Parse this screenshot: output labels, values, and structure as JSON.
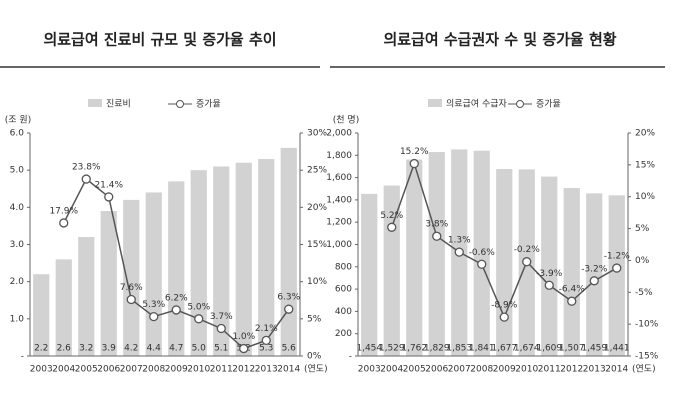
{
  "chart_data": [
    {
      "type": "combo",
      "title": "의료급여 진료비 규모 및 증가율 추이",
      "y_label": "(조 원)",
      "x_label": "(연도)",
      "categories": [
        "2003",
        "2004",
        "2005",
        "2006",
        "2007",
        "2008",
        "2009",
        "2010",
        "2011",
        "2012",
        "2013",
        "2014"
      ],
      "series": [
        {
          "name": "진료비",
          "color": "#d2d2d2",
          "values": [
            2.2,
            2.6,
            3.2,
            3.9,
            4.2,
            4.4,
            4.7,
            5.0,
            5.1,
            5.2,
            5.3,
            5.6
          ],
          "value_labels": [
            "2.2",
            "2.6",
            "3.2",
            "3.9",
            "4.2",
            "4.4",
            "4.7",
            "5.0",
            "5.1",
            "5.2",
            "5.3",
            "5.6"
          ]
        },
        {
          "name": "증가율",
          "color": "#555555",
          "axis": "y2",
          "values": [
            null,
            17.9,
            23.8,
            21.4,
            7.6,
            5.3,
            6.2,
            5.0,
            3.7,
            1.0,
            2.1,
            6.3
          ],
          "value_labels": [
            null,
            "17.9%",
            "23.8%",
            "21.4%",
            "7.6%",
            "5.3%",
            "6.2%",
            "5.0%",
            "3.7%",
            "1.0%",
            "2.1%",
            "6.3%"
          ]
        }
      ],
      "ylim": [
        0,
        6
      ],
      "yticks": [
        {
          "value": 0,
          "label": "-"
        },
        {
          "value": 1,
          "label": "1.0"
        },
        {
          "value": 2,
          "label": "2.0"
        },
        {
          "value": 3,
          "label": "3.0"
        },
        {
          "value": 4,
          "label": "4.0"
        },
        {
          "value": 5,
          "label": "5.0"
        },
        {
          "value": 6,
          "label": "6.0"
        }
      ],
      "y2lim": [
        0,
        30
      ],
      "y2ticks": [
        {
          "value": 0,
          "label": "0%"
        },
        {
          "value": 5,
          "label": "5%"
        },
        {
          "value": 10,
          "label": "10%"
        },
        {
          "value": 15,
          "label": "15%"
        },
        {
          "value": 20,
          "label": "20%"
        },
        {
          "value": 25,
          "label": "25%"
        },
        {
          "value": 30,
          "label": "30%"
        }
      ]
    },
    {
      "type": "combo",
      "title": "의료급여 수급권자 수 및 증가율 현황",
      "y_label": "(천 명)",
      "x_label": "(연도)",
      "categories": [
        "2003",
        "2004",
        "2005",
        "2006",
        "2007",
        "2008",
        "2009",
        "2010",
        "2011",
        "2012",
        "2013",
        "2014"
      ],
      "series": [
        {
          "name": "의료급여 수급자",
          "color": "#d2d2d2",
          "values": [
            1454,
            1529,
            1762,
            1829,
            1853,
            1841,
            1677,
            1674,
            1609,
            1507,
            1459,
            1441
          ],
          "value_labels": [
            "1,454",
            "1,529",
            "1,762",
            "1,829",
            "1,853",
            "1,841",
            "1,677",
            "1,674",
            "1,609",
            "1,507",
            "1,459",
            "1,441"
          ]
        },
        {
          "name": "증가율",
          "color": "#555555",
          "axis": "y2",
          "values": [
            null,
            5.2,
            15.2,
            3.8,
            1.3,
            -0.6,
            -8.9,
            -0.2,
            -3.9,
            -6.4,
            -3.2,
            -1.2
          ],
          "value_labels": [
            null,
            "5.2%",
            "15.2%",
            "3.8%",
            "1.3%",
            "-0.6%",
            "-8.9%",
            "-0.2%",
            "-3.9%",
            "-6.4%",
            "-3.2%",
            "-1.2%"
          ]
        }
      ],
      "ylim": [
        0,
        2000
      ],
      "yticks": [
        {
          "value": 0,
          "label": "-"
        },
        200,
        400,
        600,
        800,
        {
          "value": 1000,
          "label": "1,000"
        },
        {
          "value": 1200,
          "label": "1,200"
        },
        {
          "value": 1400,
          "label": "1,400"
        },
        {
          "value": 1600,
          "label": "1,600"
        },
        {
          "value": 1800,
          "label": "1,800"
        },
        {
          "value": 2000,
          "label": "2,000"
        }
      ],
      "y2lim": [
        -15,
        20
      ],
      "y2ticks": [
        {
          "value": -15,
          "label": "-15%"
        },
        {
          "value": -10,
          "label": "-10%"
        },
        {
          "value": -5,
          "label": "-5%"
        },
        {
          "value": 0,
          "label": "0%"
        },
        {
          "value": 5,
          "label": "5%"
        },
        {
          "value": 10,
          "label": "10%"
        },
        {
          "value": 15,
          "label": "15%"
        },
        {
          "value": 20,
          "label": "20%"
        }
      ]
    }
  ]
}
